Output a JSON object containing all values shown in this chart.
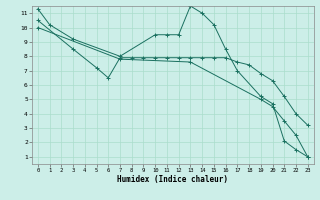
{
  "title": "",
  "xlabel": "Humidex (Indice chaleur)",
  "bg_color": "#cceee8",
  "grid_color": "#aaddcc",
  "line_color": "#1a7060",
  "xlim": [
    -0.5,
    23.5
  ],
  "ylim": [
    0.5,
    11.5
  ],
  "yticks": [
    1,
    2,
    3,
    4,
    5,
    6,
    7,
    8,
    9,
    10,
    11
  ],
  "xticks": [
    0,
    1,
    2,
    3,
    4,
    5,
    6,
    7,
    8,
    9,
    10,
    11,
    12,
    13,
    14,
    15,
    16,
    17,
    18,
    19,
    20,
    21,
    22,
    23
  ],
  "line1_x": [
    0,
    1,
    3,
    7,
    10,
    11,
    12,
    13,
    14,
    15,
    16,
    17,
    19,
    20,
    21,
    22,
    23
  ],
  "line1_y": [
    11.3,
    10.2,
    9.2,
    8.0,
    9.5,
    9.5,
    9.5,
    11.5,
    11.0,
    10.2,
    8.5,
    7.0,
    5.2,
    4.7,
    2.1,
    1.5,
    1.0
  ],
  "line2_x": [
    0,
    3,
    5,
    6,
    7,
    8,
    9,
    10,
    11,
    12,
    13,
    14,
    15,
    16,
    17,
    18,
    19,
    20,
    21,
    22,
    23
  ],
  "line2_y": [
    10.5,
    8.5,
    7.2,
    6.5,
    7.9,
    7.9,
    7.9,
    7.9,
    7.9,
    7.9,
    7.9,
    7.9,
    7.9,
    7.9,
    7.6,
    7.4,
    6.8,
    6.3,
    5.2,
    4.0,
    3.2
  ],
  "line3_x": [
    0,
    7,
    13,
    19,
    20,
    21,
    22,
    23
  ],
  "line3_y": [
    10.0,
    7.8,
    7.6,
    5.0,
    4.5,
    3.5,
    2.5,
    1.0
  ]
}
